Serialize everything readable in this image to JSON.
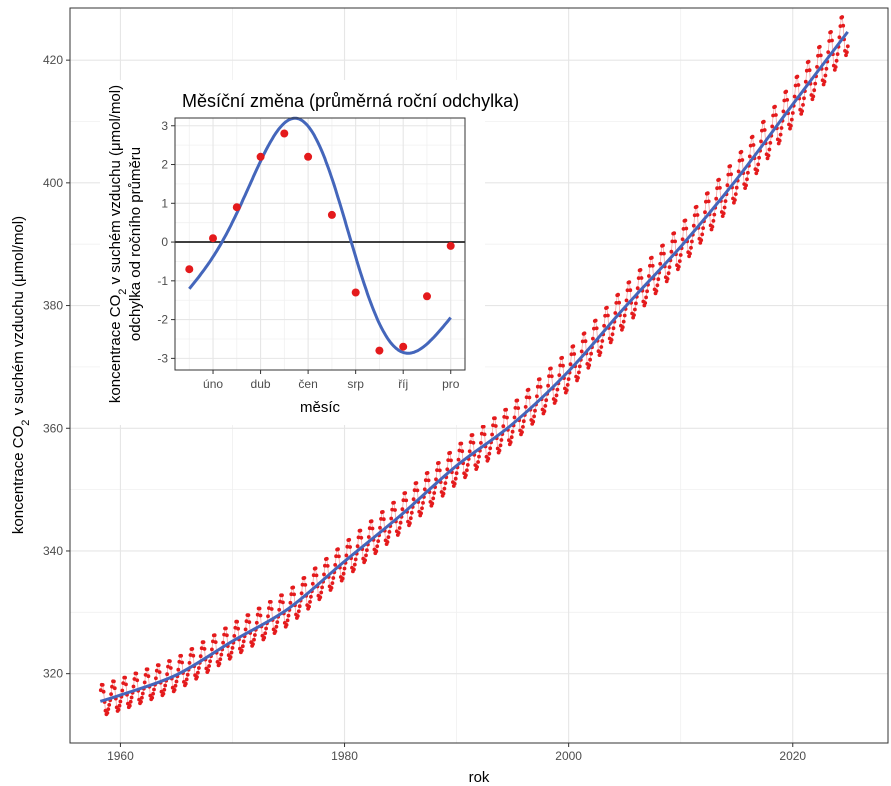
{
  "chart_data": [
    {
      "type": "line",
      "xlabel": "rok",
      "ylabel_prefix": "koncentrace CO",
      "ylabel_sub": "2",
      "ylabel_suffix": " v suchém vzduchu (μmol/mol)",
      "xlim": [
        1955.5,
        2028.5
      ],
      "ylim": [
        308.7,
        428.5
      ],
      "x_ticks": [
        1960,
        1980,
        2000,
        2020
      ],
      "x_tick_labels": [
        "1960",
        "1980",
        "2000",
        "2020"
      ],
      "y_ticks": [
        320,
        340,
        360,
        380,
        400,
        420
      ],
      "y_tick_labels": [
        "320",
        "340",
        "360",
        "380",
        "400",
        "420"
      ],
      "grid": true,
      "series": [
        {
          "role": "monthly points",
          "color": "#e41a1c",
          "x_start": 1958.25,
          "x_end": 2024.92,
          "trend_points": [
            [
              1958.2,
              315.5
            ],
            [
              1960,
              316.5
            ],
            [
              1965,
              319.8
            ],
            [
              1970,
              325.3
            ],
            [
              1975,
              330.6
            ],
            [
              1980,
              338.3
            ],
            [
              1985,
              345.8
            ],
            [
              1990,
              353.9
            ],
            [
              1995,
              360.7
            ],
            [
              2000,
              369.3
            ],
            [
              2005,
              379.7
            ],
            [
              2010,
              389.6
            ],
            [
              2015,
              400.6
            ],
            [
              2020,
              412.8
            ],
            [
              2024.9,
              424.6
            ]
          ]
        },
        {
          "role": "smoothed trend",
          "color": "#4466bb",
          "points": [
            [
              1958.2,
              315.5
            ],
            [
              1960,
              316.5
            ],
            [
              1965,
              319.8
            ],
            [
              1970,
              325.3
            ],
            [
              1975,
              330.6
            ],
            [
              1980,
              338.3
            ],
            [
              1985,
              345.8
            ],
            [
              1990,
              353.9
            ],
            [
              1995,
              360.7
            ],
            [
              2000,
              369.3
            ],
            [
              2005,
              379.7
            ],
            [
              2010,
              389.6
            ],
            [
              2015,
              400.6
            ],
            [
              2020,
              412.8
            ],
            [
              2024.9,
              424.6
            ]
          ]
        }
      ]
    },
    {
      "type": "line",
      "title": "Měsíční změna (průměrná roční odchylka)",
      "xlabel": "měsíc",
      "ylabel_line1_prefix": "koncentrace CO",
      "ylabel_line1_sub": "2",
      "ylabel_line1_suffix": " v suchém vzduchu (μmol/mol)",
      "ylabel_line2": "odchylka od ročního průměru",
      "xlim": [
        0.4,
        12.6
      ],
      "ylim": [
        -3.3,
        3.2
      ],
      "x_ticks": [
        2,
        4,
        6,
        8,
        10,
        12
      ],
      "x_tick_labels": [
        "úno",
        "dub",
        "čen",
        "srp",
        "říj",
        "pro"
      ],
      "y_ticks": [
        -3,
        -2,
        -1,
        0,
        1,
        2,
        3
      ],
      "y_tick_labels": [
        "-3",
        "-2",
        "-1",
        "0",
        "1",
        "2",
        "3"
      ],
      "grid": true,
      "zero_line": true,
      "months": [
        1,
        2,
        3,
        4,
        5,
        6,
        7,
        8,
        9,
        10,
        11,
        12
      ],
      "values": [
        -0.7,
        0.1,
        0.9,
        2.2,
        2.8,
        2.2,
        0.7,
        -1.3,
        -2.8,
        -2.7,
        -1.4,
        -0.1
      ],
      "point_color": "#e41a1c",
      "curve_color": "#4466bb",
      "curve_model": {
        "offset": -0.08,
        "a1": -1.425,
        "b1": 2.467,
        "a2": 0.3,
        "b2": -0.52
      }
    }
  ]
}
